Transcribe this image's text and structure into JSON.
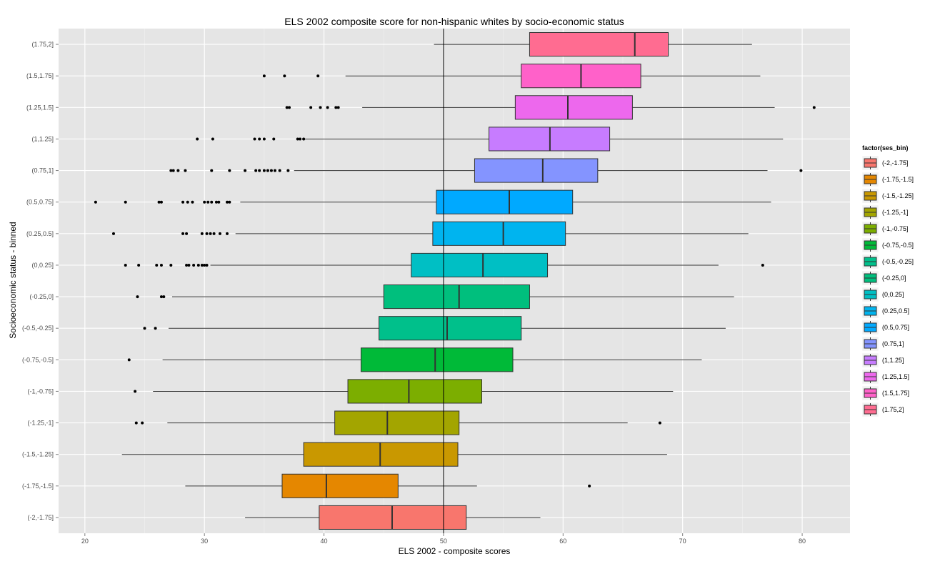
{
  "chart_data": {
    "type": "boxplot",
    "orientation": "horizontal",
    "title": "ELS 2002 composite score for non-hispanic whites by socio-economic status",
    "xlabel": "ELS 2002 - composite scores",
    "ylabel": "Socioeconomic status - binned",
    "xlim": [
      17.8,
      84
    ],
    "x_ticks": [
      20,
      30,
      40,
      50,
      60,
      70,
      80
    ],
    "reference_line_x": 50,
    "grid": true,
    "legend_title": "factor(ses_bin)",
    "legend_position": "right",
    "categories": [
      "(-2,-1.75]",
      "(-1.75,-1.5]",
      "(-1.5,-1.25]",
      "(-1.25,-1]",
      "(-1,-0.75]",
      "(-0.75,-0.5]",
      "(-0.5,-0.25]",
      "(-0.25,0]",
      "(0,0.25]",
      "(0.25,0.5]",
      "(0.5,0.75]",
      "(0.75,1]",
      "(1,1.25]",
      "(1.25,1.5]",
      "(1.5,1.75]",
      "(1.75,2]"
    ],
    "series": [
      {
        "name": "(-2,-1.75]",
        "color": "#F8766D",
        "min": 33.4,
        "q1": 39.6,
        "median": 45.7,
        "q3": 51.9,
        "max": 58.1,
        "outliers": []
      },
      {
        "name": "(-1.75,-1.5]",
        "color": "#E58700",
        "min": 28.4,
        "q1": 36.5,
        "median": 40.2,
        "q3": 46.2,
        "max": 52.8,
        "outliers": [
          62.2
        ]
      },
      {
        "name": "(-1.5,-1.25]",
        "color": "#C99800",
        "min": 23.1,
        "q1": 38.3,
        "median": 44.7,
        "q3": 51.2,
        "max": 68.7,
        "outliers": []
      },
      {
        "name": "(-1.25,-1]",
        "color": "#A3A500",
        "min": 26.9,
        "q1": 40.9,
        "median": 45.3,
        "q3": 51.3,
        "max": 65.4,
        "outliers": [
          24.3,
          24.8,
          68.1
        ]
      },
      {
        "name": "(-1,-0.75]",
        "color": "#7CAE00",
        "min": 25.7,
        "q1": 42.0,
        "median": 47.1,
        "q3": 53.2,
        "max": 69.2,
        "outliers": [
          24.2
        ]
      },
      {
        "name": "(-0.75,-0.5]",
        "color": "#00BA38",
        "min": 26.5,
        "q1": 43.1,
        "median": 49.3,
        "q3": 55.8,
        "max": 71.6,
        "outliers": [
          23.7
        ]
      },
      {
        "name": "(-0.5,-0.25]",
        "color": "#00C08B",
        "min": 27.0,
        "q1": 44.6,
        "median": 50.3,
        "q3": 56.5,
        "max": 73.6,
        "outliers": [
          25.0,
          25.9
        ]
      },
      {
        "name": "(-0.25,0]",
        "color": "#00BF7D",
        "min": 27.3,
        "q1": 45.0,
        "median": 51.3,
        "q3": 57.2,
        "max": 74.3,
        "outliers": [
          24.4,
          26.4,
          26.6
        ]
      },
      {
        "name": "(0,0.25]",
        "color": "#00BFC4",
        "min": 30.5,
        "q1": 47.3,
        "median": 53.3,
        "q3": 58.7,
        "max": 73.0,
        "outliers": [
          23.4,
          24.5,
          26.0,
          26.4,
          27.2,
          28.5,
          28.7,
          29.1,
          29.5,
          29.8,
          30.0,
          30.2,
          76.7
        ]
      },
      {
        "name": "(0.25,0.5]",
        "color": "#00B4EF",
        "min": 32.6,
        "q1": 49.1,
        "median": 55.0,
        "q3": 60.2,
        "max": 75.5,
        "outliers": [
          22.4,
          28.2,
          28.5,
          29.8,
          30.2,
          30.5,
          30.8,
          31.3,
          31.9
        ]
      },
      {
        "name": "(0.5,0.75]",
        "color": "#00A9FF",
        "min": 33.0,
        "q1": 49.4,
        "median": 55.5,
        "q3": 60.8,
        "max": 77.4,
        "outliers": [
          20.9,
          23.4,
          26.2,
          26.4,
          28.2,
          28.6,
          29.0,
          30.0,
          30.3,
          30.6,
          31.0,
          31.2,
          31.9,
          32.1
        ]
      },
      {
        "name": "(0.75,1]",
        "color": "#8494FF",
        "min": 37.5,
        "q1": 52.6,
        "median": 58.3,
        "q3": 62.9,
        "max": 77.1,
        "outliers": [
          27.2,
          27.4,
          27.8,
          28.4,
          30.6,
          32.1,
          33.4,
          34.3,
          34.6,
          35.0,
          35.3,
          35.6,
          35.9,
          36.3,
          37.0,
          79.9
        ]
      },
      {
        "name": "(1,1.25]",
        "color": "#C77CFF",
        "min": 38.4,
        "q1": 53.8,
        "median": 58.9,
        "q3": 63.9,
        "max": 78.4,
        "outliers": [
          29.4,
          30.7,
          34.2,
          34.6,
          35.0,
          35.8,
          37.8,
          38.0,
          38.3
        ]
      },
      {
        "name": "(1.25,1.5]",
        "color": "#ED68ED",
        "min": 43.2,
        "q1": 56.0,
        "median": 60.4,
        "q3": 65.8,
        "max": 77.7,
        "outliers": [
          36.9,
          37.1,
          38.9,
          39.7,
          40.3,
          41.0,
          41.2,
          81.0
        ]
      },
      {
        "name": "(1.5,1.75]",
        "color": "#FF61C9",
        "min": 41.8,
        "q1": 56.5,
        "median": 61.5,
        "q3": 66.5,
        "max": 76.5,
        "outliers": [
          35.0,
          36.7,
          39.5
        ]
      },
      {
        "name": "(1.75,2]",
        "color": "#FF6C91",
        "min": 49.2,
        "q1": 57.2,
        "median": 66.0,
        "q3": 68.8,
        "max": 75.8,
        "outliers": []
      }
    ]
  }
}
